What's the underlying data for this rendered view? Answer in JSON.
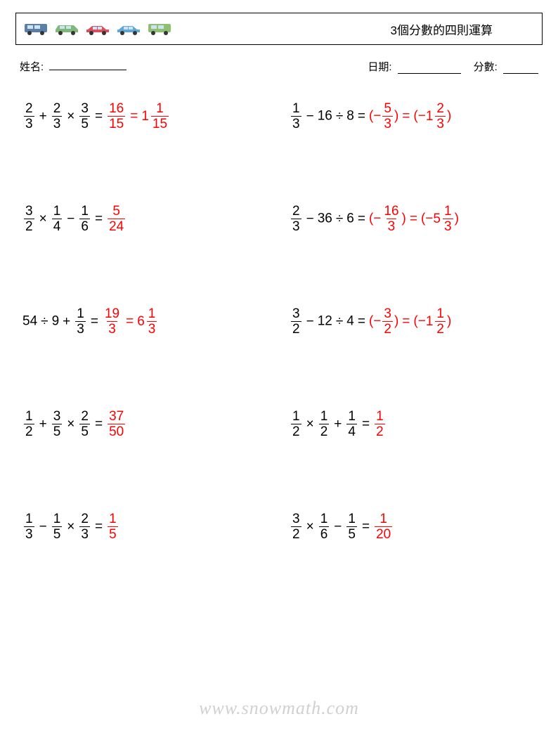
{
  "header": {
    "title": "3個分數的四則運算",
    "cars": [
      {
        "body": "#5b7fa6",
        "roof": "#3c5e82",
        "type": "van"
      },
      {
        "body": "#7fb97a",
        "roof": "#5a9155",
        "type": "wagon"
      },
      {
        "body": "#d94f5c",
        "roof": "#b03845",
        "type": "sedan"
      },
      {
        "body": "#5fa8d3",
        "roof": "#3d7fa8",
        "type": "sedan"
      },
      {
        "body": "#8fbf72",
        "roof": "#6fa056",
        "type": "minivan"
      }
    ]
  },
  "info": {
    "name_label": "姓名:",
    "date_label": "日期:",
    "score_label": "分數:",
    "name_underline_width": 110,
    "date_underline_width": 90,
    "score_underline_width": 50
  },
  "style": {
    "text_color": "#000000",
    "answer_color": "#ff0000",
    "font_size_problem": 19,
    "font_size_title": 17,
    "font_size_info": 15,
    "underline_color": "#000000",
    "watermark_color_rgba": "rgba(120,120,130,0.35)"
  },
  "problems": [
    {
      "lhs": [
        {
          "t": "frac",
          "n": "2",
          "d": "3"
        },
        {
          "t": "op",
          "v": "+"
        },
        {
          "t": "frac",
          "n": "2",
          "d": "3"
        },
        {
          "t": "op",
          "v": "×"
        },
        {
          "t": "frac",
          "n": "3",
          "d": "5"
        }
      ],
      "answers": [
        [
          {
            "t": "frac",
            "n": "16",
            "d": "15"
          }
        ],
        [
          {
            "t": "mixed",
            "w": "1",
            "n": "1",
            "d": "15"
          }
        ]
      ]
    },
    {
      "lhs": [
        {
          "t": "frac",
          "n": "1",
          "d": "3"
        },
        {
          "t": "op",
          "v": "−"
        },
        {
          "t": "int",
          "v": "16"
        },
        {
          "t": "op",
          "v": "÷"
        },
        {
          "t": "int",
          "v": "8"
        }
      ],
      "answers": [
        [
          {
            "t": "txt",
            "v": "(−"
          },
          {
            "t": "frac",
            "n": "5",
            "d": "3"
          },
          {
            "t": "txt",
            "v": ")"
          }
        ],
        [
          {
            "t": "txt",
            "v": "(−"
          },
          {
            "t": "mixed",
            "w": "1",
            "n": "2",
            "d": "3"
          },
          {
            "t": "txt",
            "v": ")"
          }
        ]
      ]
    },
    {
      "lhs": [
        {
          "t": "frac",
          "n": "3",
          "d": "2"
        },
        {
          "t": "op",
          "v": "×"
        },
        {
          "t": "frac",
          "n": "1",
          "d": "4"
        },
        {
          "t": "op",
          "v": "−"
        },
        {
          "t": "frac",
          "n": "1",
          "d": "6"
        }
      ],
      "answers": [
        [
          {
            "t": "frac",
            "n": "5",
            "d": "24"
          }
        ]
      ]
    },
    {
      "lhs": [
        {
          "t": "frac",
          "n": "2",
          "d": "3"
        },
        {
          "t": "op",
          "v": "−"
        },
        {
          "t": "int",
          "v": "36"
        },
        {
          "t": "op",
          "v": "÷"
        },
        {
          "t": "int",
          "v": "6"
        }
      ],
      "answers": [
        [
          {
            "t": "txt",
            "v": "(−"
          },
          {
            "t": "frac",
            "n": "16",
            "d": "3"
          },
          {
            "t": "txt",
            "v": ")"
          }
        ],
        [
          {
            "t": "txt",
            "v": "(−"
          },
          {
            "t": "mixed",
            "w": "5",
            "n": "1",
            "d": "3"
          },
          {
            "t": "txt",
            "v": ")"
          }
        ]
      ]
    },
    {
      "lhs": [
        {
          "t": "int",
          "v": "54"
        },
        {
          "t": "op",
          "v": "÷"
        },
        {
          "t": "int",
          "v": "9"
        },
        {
          "t": "op",
          "v": "+"
        },
        {
          "t": "frac",
          "n": "1",
          "d": "3"
        }
      ],
      "answers": [
        [
          {
            "t": "frac",
            "n": "19",
            "d": "3"
          }
        ],
        [
          {
            "t": "mixed",
            "w": "6",
            "n": "1",
            "d": "3"
          }
        ]
      ]
    },
    {
      "lhs": [
        {
          "t": "frac",
          "n": "3",
          "d": "2"
        },
        {
          "t": "op",
          "v": "−"
        },
        {
          "t": "int",
          "v": "12"
        },
        {
          "t": "op",
          "v": "÷"
        },
        {
          "t": "int",
          "v": "4"
        }
      ],
      "answers": [
        [
          {
            "t": "txt",
            "v": "(−"
          },
          {
            "t": "frac",
            "n": "3",
            "d": "2"
          },
          {
            "t": "txt",
            "v": ")"
          }
        ],
        [
          {
            "t": "txt",
            "v": "(−"
          },
          {
            "t": "mixed",
            "w": "1",
            "n": "1",
            "d": "2"
          },
          {
            "t": "txt",
            "v": ")"
          }
        ]
      ]
    },
    {
      "lhs": [
        {
          "t": "frac",
          "n": "1",
          "d": "2"
        },
        {
          "t": "op",
          "v": "+"
        },
        {
          "t": "frac",
          "n": "3",
          "d": "5"
        },
        {
          "t": "op",
          "v": "×"
        },
        {
          "t": "frac",
          "n": "2",
          "d": "5"
        }
      ],
      "answers": [
        [
          {
            "t": "frac",
            "n": "37",
            "d": "50"
          }
        ]
      ]
    },
    {
      "lhs": [
        {
          "t": "frac",
          "n": "1",
          "d": "2"
        },
        {
          "t": "op",
          "v": "×"
        },
        {
          "t": "frac",
          "n": "1",
          "d": "2"
        },
        {
          "t": "op",
          "v": "+"
        },
        {
          "t": "frac",
          "n": "1",
          "d": "4"
        }
      ],
      "answers": [
        [
          {
            "t": "frac",
            "n": "1",
            "d": "2"
          }
        ]
      ]
    },
    {
      "lhs": [
        {
          "t": "frac",
          "n": "1",
          "d": "3"
        },
        {
          "t": "op",
          "v": "−"
        },
        {
          "t": "frac",
          "n": "1",
          "d": "5"
        },
        {
          "t": "op",
          "v": "×"
        },
        {
          "t": "frac",
          "n": "2",
          "d": "3"
        }
      ],
      "answers": [
        [
          {
            "t": "frac",
            "n": "1",
            "d": "5"
          }
        ]
      ]
    },
    {
      "lhs": [
        {
          "t": "frac",
          "n": "3",
          "d": "2"
        },
        {
          "t": "op",
          "v": "×"
        },
        {
          "t": "frac",
          "n": "1",
          "d": "6"
        },
        {
          "t": "op",
          "v": "−"
        },
        {
          "t": "frac",
          "n": "1",
          "d": "5"
        }
      ],
      "answers": [
        [
          {
            "t": "frac",
            "n": "1",
            "d": "20"
          }
        ]
      ]
    }
  ],
  "watermark": "www.snowmath.com"
}
